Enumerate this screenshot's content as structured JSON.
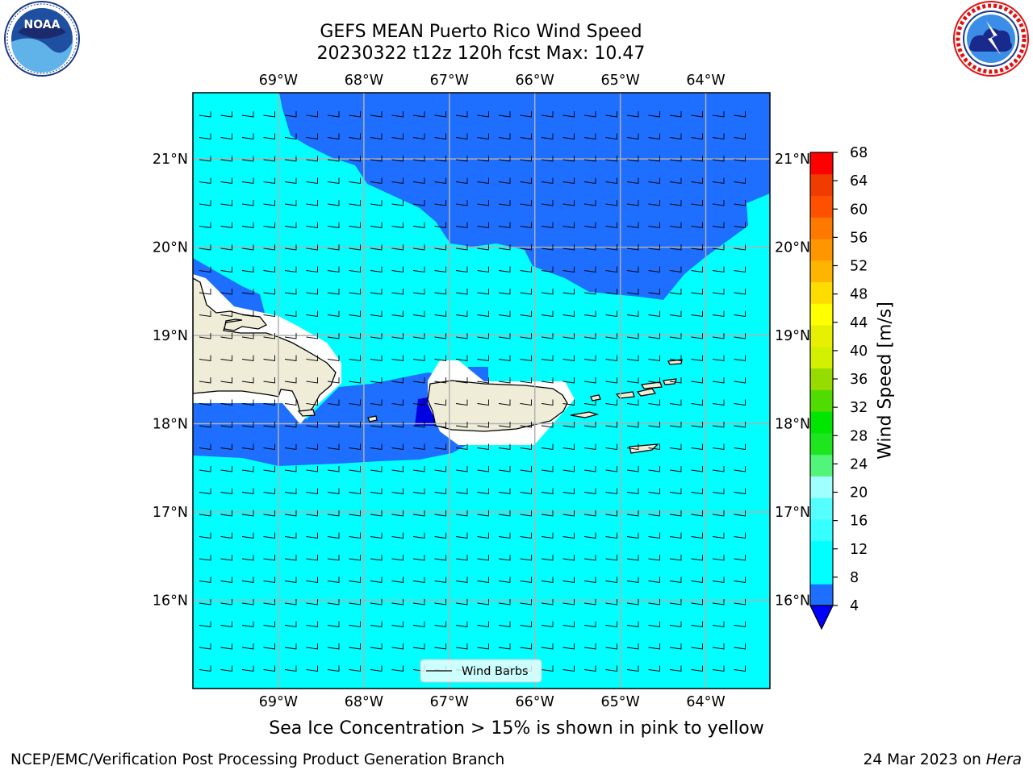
{
  "title": {
    "line1": "GEFS MEAN Puerto Rico Wind Speed",
    "line2": "20230322 t12z 120h fcst   Max: 10.47"
  },
  "map": {
    "lon_range": [
      -70.0,
      -63.25
    ],
    "lat_range": [
      15.0,
      21.75
    ],
    "lon_ticks": [
      {
        "value": -69,
        "label": "69°W"
      },
      {
        "value": -68,
        "label": "68°W"
      },
      {
        "value": -67,
        "label": "67°W"
      },
      {
        "value": -66,
        "label": "66°W"
      },
      {
        "value": -65,
        "label": "65°W"
      },
      {
        "value": -64,
        "label": "64°W"
      }
    ],
    "lat_ticks": [
      {
        "value": 21,
        "label": "21°N"
      },
      {
        "value": 20,
        "label": "20°N"
      },
      {
        "value": 19,
        "label": "19°N"
      },
      {
        "value": 18,
        "label": "18°N"
      },
      {
        "value": 17,
        "label": "17°N"
      },
      {
        "value": 16,
        "label": "16°N"
      }
    ],
    "grid": true,
    "field_colors": {
      "band_4_8": "#1e6eff",
      "band_8_12": "#00ffff",
      "below_4": "#0000e0",
      "land": "#efedd8"
    }
  },
  "legend": {
    "label": "Wind Barbs",
    "placement": "bottom-center"
  },
  "colorbar": {
    "label": "Wind Speed [m/s]",
    "ticks": [
      4,
      8,
      12,
      16,
      20,
      24,
      28,
      32,
      36,
      40,
      44,
      48,
      52,
      56,
      60,
      64,
      68
    ],
    "tick_labels": [
      "4",
      "8",
      "12",
      "16",
      "20",
      "24",
      "28",
      "32",
      "36",
      "40",
      "44",
      "48",
      "52",
      "56",
      "60",
      "64",
      "68"
    ],
    "extend_color": "#0000ff",
    "colors": [
      "#1e6eff",
      "#00ffff",
      "#00ffff",
      "#37ffff",
      "#55ffff",
      "#a0ffff",
      "#50f57a",
      "#1ee61e",
      "#00e600",
      "#50dc00",
      "#96dc00",
      "#d2f000",
      "#e6f000",
      "#ffff00",
      "#ffdc00",
      "#ffb400",
      "#ff9600",
      "#ff7800",
      "#ff5000",
      "#f03c00",
      "#ff0000"
    ]
  },
  "notes": {
    "sea_ice": "Sea Ice Concentration > 15% is shown in pink to yellow",
    "footer_left": "NCEP/EMC/Verification Post Processing Product Generation Branch",
    "footer_date": "24 Mar 2023 on ",
    "footer_machine": "Hera"
  },
  "logos": {
    "left": "noaa-logo",
    "right": "nws-logo"
  }
}
